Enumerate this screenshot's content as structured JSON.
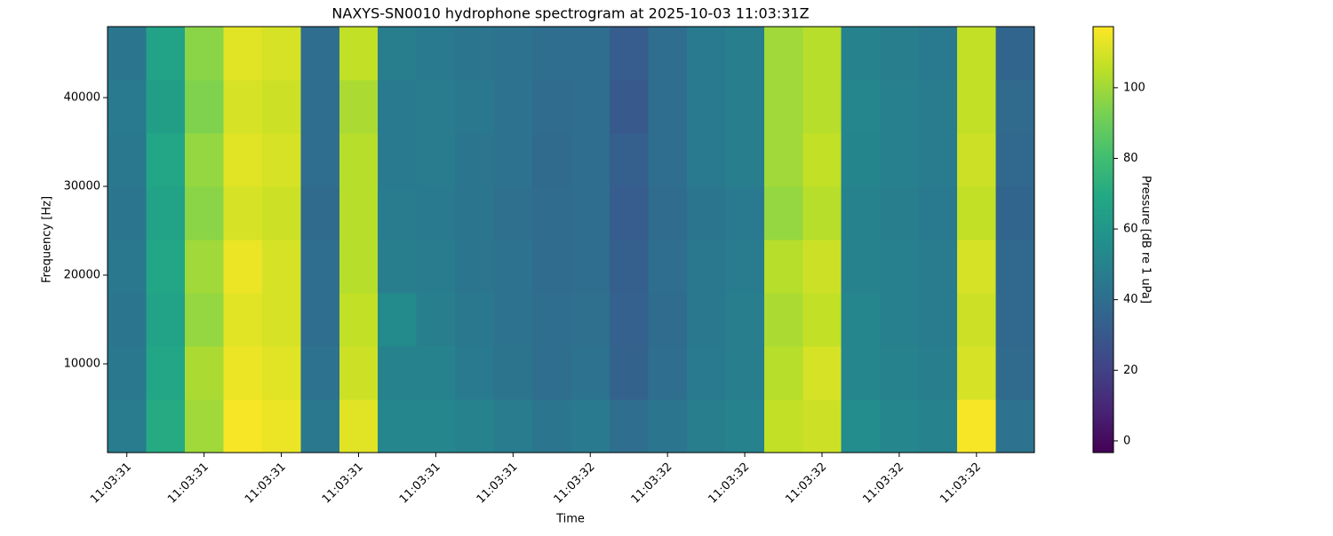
{
  "chart_data": {
    "type": "heatmap",
    "title": "NAXYS-SN0010 hydrophone spectrogram at 2025-10-03 11:03:31Z",
    "x_label": "Time",
    "y_label": "Frequency [Hz]",
    "colorbar_label": "Pressure [dB re 1 uPa]",
    "colormap": "viridis",
    "xlim": [
      31.375,
      32.575
    ],
    "ylim": [
      0,
      48000
    ],
    "clim": [
      -3.3,
      117.3
    ],
    "xbins": [
      31.375,
      31.425,
      31.475,
      31.525,
      31.575,
      31.625,
      31.675,
      31.725,
      31.775,
      31.825,
      31.875,
      31.925,
      31.975,
      32.025,
      32.075,
      32.125,
      32.175,
      32.225,
      32.275,
      32.325,
      32.375,
      32.425,
      32.475,
      32.525,
      32.575
    ],
    "ybins": [
      0,
      6000,
      12000,
      18000,
      24000,
      30000,
      36000,
      42000,
      48000
    ],
    "z": [
      [
        47,
        70,
        100,
        116,
        114,
        45,
        112,
        52,
        52,
        50,
        47,
        44,
        46,
        40,
        44,
        48,
        50,
        106,
        108,
        55,
        52,
        50,
        116,
        42
      ],
      [
        45,
        68,
        102,
        114,
        112,
        42,
        108,
        50,
        50,
        46,
        43,
        40,
        42,
        35,
        40,
        46,
        48,
        104,
        110,
        52,
        50,
        48,
        110,
        38
      ],
      [
        44,
        66,
        98,
        112,
        110,
        40,
        106,
        54,
        48,
        45,
        42,
        40,
        41,
        34,
        39,
        45,
        48,
        102,
        106,
        52,
        49,
        47,
        108,
        37
      ],
      [
        45,
        68,
        100,
        114,
        110,
        40,
        104,
        48,
        47,
        44,
        42,
        39,
        40,
        33,
        40,
        45,
        47,
        104,
        108,
        50,
        49,
        47,
        110,
        37
      ],
      [
        44,
        66,
        96,
        110,
        108,
        38,
        104,
        47,
        46,
        44,
        41,
        39,
        40,
        32,
        39,
        44,
        46,
        98,
        104,
        50,
        48,
        46,
        106,
        36
      ],
      [
        45,
        68,
        98,
        112,
        110,
        40,
        104,
        46,
        47,
        44,
        42,
        38,
        40,
        33,
        40,
        46,
        48,
        100,
        106,
        51,
        49,
        47,
        108,
        37
      ],
      [
        46,
        64,
        94,
        110,
        108,
        40,
        102,
        46,
        47,
        45,
        42,
        39,
        40,
        30,
        40,
        46,
        48,
        100,
        104,
        52,
        49,
        47,
        106,
        38
      ],
      [
        44,
        66,
        96,
        112,
        110,
        40,
        106,
        48,
        46,
        44,
        42,
        40,
        40,
        32,
        40,
        46,
        48,
        100,
        104,
        50,
        48,
        46,
        106,
        36
      ]
    ],
    "xticks": [
      {
        "value": 31.4,
        "label": "11:03:31"
      },
      {
        "value": 31.5,
        "label": "11:03:31"
      },
      {
        "value": 31.6,
        "label": "11:03:31"
      },
      {
        "value": 31.7,
        "label": "11:03:31"
      },
      {
        "value": 31.8,
        "label": "11:03:31"
      },
      {
        "value": 31.9,
        "label": "11:03:31"
      },
      {
        "value": 32.0,
        "label": "11:03:32"
      },
      {
        "value": 32.1,
        "label": "11:03:32"
      },
      {
        "value": 32.2,
        "label": "11:03:32"
      },
      {
        "value": 32.3,
        "label": "11:03:32"
      },
      {
        "value": 32.4,
        "label": "11:03:32"
      },
      {
        "value": 32.5,
        "label": "11:03:32"
      }
    ],
    "yticks": [
      10000,
      20000,
      30000,
      40000
    ],
    "cticks": [
      0,
      20,
      40,
      60,
      80,
      100
    ]
  }
}
